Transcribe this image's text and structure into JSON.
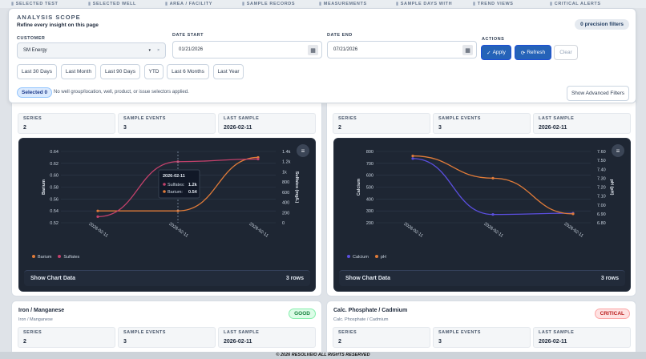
{
  "tabs": [
    "SELECTED TEST",
    "SELECTED WELL",
    "AREA / FACILITY",
    "SAMPLE RECORDS",
    "MEASUREMENTS",
    "SAMPLE DAYS WITH",
    "TREND VIEWS",
    "CRITICAL ALERTS"
  ],
  "scope": {
    "title": "ANALYSIS SCOPE",
    "subtitle": "Refine every insight on this page",
    "precision_badge": "0 precision filters",
    "customer_label": "CUSTOMER",
    "customer_value": "SM Energy",
    "date_start_label": "DATE START",
    "date_start_value": "01/21/2026",
    "date_end_label": "DATE END",
    "date_end_value": "07/21/2026",
    "actions_label": "ACTIONS",
    "apply": "Apply",
    "refresh": "Refresh",
    "clear": "Clear",
    "quick_ranges": [
      "Last 30 Days",
      "Last Month",
      "Last 90 Days",
      "YTD",
      "Last 6 Months",
      "Last Year"
    ],
    "selected_chip": "Selected 0",
    "selectors_note": "No well group/location, well, product, or issue selectors applied.",
    "advanced": "Show Advanced Filters"
  },
  "panels": [
    {
      "stats": [
        {
          "label": "SERIES",
          "value": "2"
        },
        {
          "label": "SAMPLE EVENTS",
          "value": "3"
        },
        {
          "label": "LAST SAMPLE",
          "value": "2026-02-11"
        }
      ],
      "show_data": "Show Chart Data",
      "rows": "3 rows"
    },
    {
      "stats": [
        {
          "label": "SERIES",
          "value": "2"
        },
        {
          "label": "SAMPLE EVENTS",
          "value": "3"
        },
        {
          "label": "LAST SAMPLE",
          "value": "2026-02-11"
        }
      ],
      "show_data": "Show Chart Data",
      "rows": "3 rows"
    },
    {
      "title": "Iron / Manganese",
      "sub": "Iron / Manganese",
      "status": "GOOD",
      "stats": [
        {
          "label": "SERIES",
          "value": "2"
        },
        {
          "label": "SAMPLE EVENTS",
          "value": "3"
        },
        {
          "label": "LAST SAMPLE",
          "value": "2026-02-11"
        }
      ]
    },
    {
      "title": "Calc. Phosphate / Cadmium",
      "sub": "Calc. Phosphate / Cadmium",
      "status": "CRITICAL",
      "stats": [
        {
          "label": "SERIES",
          "value": "2"
        },
        {
          "label": "SAMPLE EVENTS",
          "value": "3"
        },
        {
          "label": "LAST SAMPLE",
          "value": "2026-02-11"
        }
      ]
    }
  ],
  "chart_data": [
    {
      "type": "line",
      "x": [
        "2026-02-11",
        "2026-02-11",
        "2026-02-11"
      ],
      "series": [
        {
          "name": "Barium",
          "values": [
            0.54,
            0.54,
            0.63
          ],
          "color": "#e07b39",
          "axis": "left"
        },
        {
          "name": "Sulfates",
          "values": [
            120,
            1200,
            1250
          ],
          "color": "#c2416b",
          "axis": "right"
        }
      ],
      "ylabel": "Barium",
      "ylabel_right": "Sulfates (mg/L)",
      "yticks": [
        "0.64",
        "0.62",
        "0.60",
        "0.58",
        "0.56",
        "0.54",
        "0.52"
      ],
      "yticks_right": [
        "1.4k",
        "1.2k",
        "1k",
        "800",
        "600",
        "400",
        "200",
        "0"
      ],
      "ylim": [
        0.52,
        0.64
      ],
      "ylim_right": [
        0,
        1400
      ],
      "tooltip": {
        "date": "2026-02-11",
        "lines": [
          {
            "name": "Sulfates",
            "value": "1.2k",
            "color": "#c2416b"
          },
          {
            "name": "Barium",
            "value": "0.54",
            "color": "#e07b39"
          }
        ]
      }
    },
    {
      "type": "line",
      "x": [
        "2026-02-11",
        "2026-02-11",
        "2026-02-11"
      ],
      "series": [
        {
          "name": "Calcium",
          "values": [
            740,
            270,
            280
          ],
          "color": "#5b4fe0",
          "axis": "left"
        },
        {
          "name": "pH",
          "values": [
            7.55,
            7.3,
            6.9
          ],
          "color": "#e07b39",
          "axis": "right"
        }
      ],
      "ylabel": "Calcium",
      "ylabel_right": "pH (pH)",
      "yticks": [
        "800",
        "700",
        "600",
        "500",
        "400",
        "300",
        "200"
      ],
      "yticks_right": [
        "7.60",
        "7.50",
        "7.40",
        "7.30",
        "7.20",
        "7.10",
        "7.00",
        "6.90",
        "6.80"
      ],
      "ylim": [
        200,
        800
      ],
      "ylim_right": [
        6.8,
        7.6
      ]
    }
  ],
  "footer": "© 2026 RESOLVEIO ALL RIGHTS RESERVED"
}
